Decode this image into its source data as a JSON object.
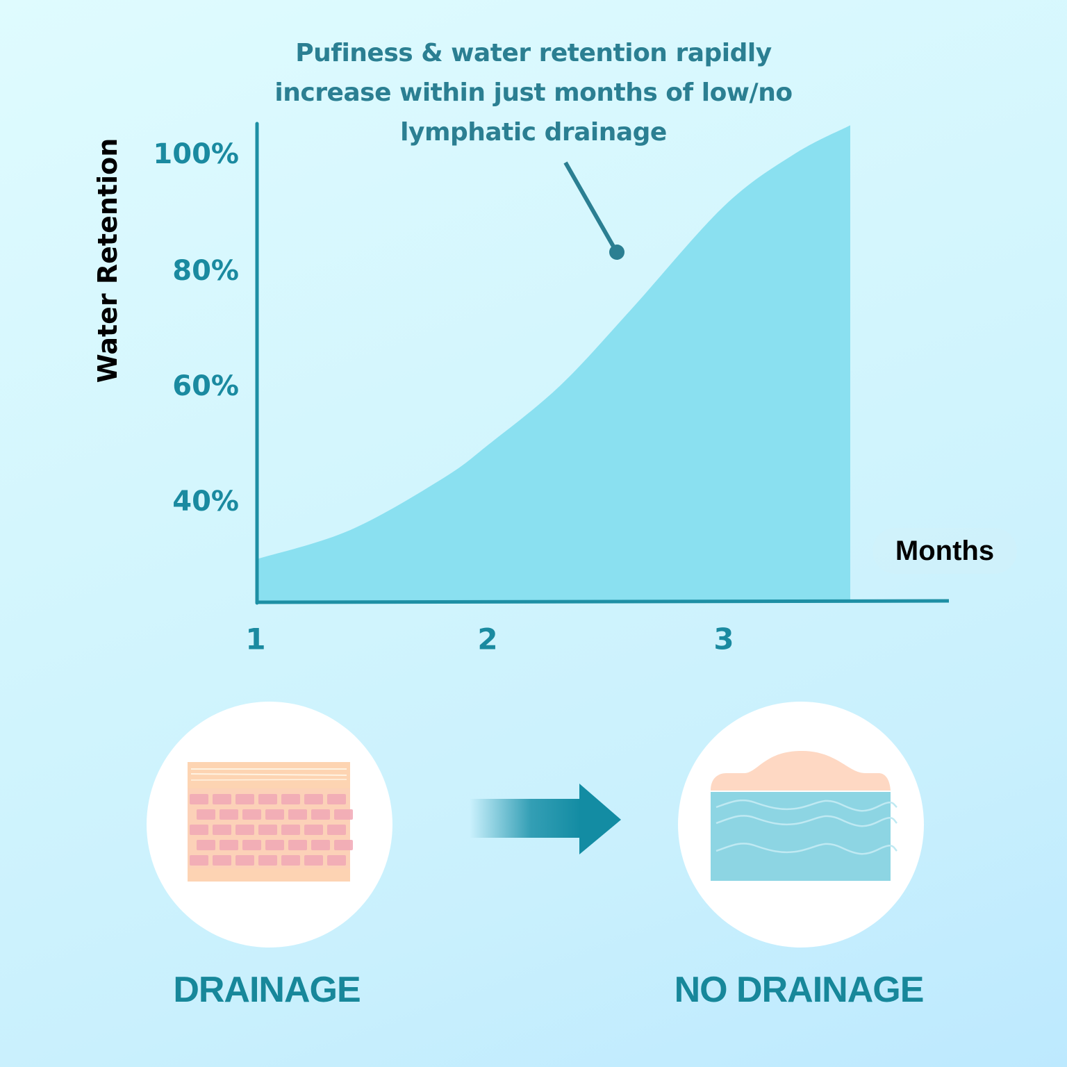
{
  "chart_data": {
    "type": "area",
    "title": "",
    "annotation": "Pufiness & water retention rapidly increase within just months of low/no lymphatic drainage",
    "xlabel": "Months",
    "ylabel": "Water Retention",
    "x_ticks": [
      "1",
      "2",
      "3"
    ],
    "x_tick_values": [
      1,
      2,
      3
    ],
    "y_ticks": [
      "40%",
      "60%",
      "80%",
      "100%"
    ],
    "y_tick_values": [
      40,
      60,
      80,
      100
    ],
    "xlim": [
      1,
      4.0
    ],
    "ylim": [
      22.7,
      105
    ],
    "grid": false,
    "series": [
      {
        "name": "Water Retention",
        "x": [
          1.0,
          1.4,
          1.8,
          2.0,
          2.3,
          2.6,
          3.0,
          3.3,
          3.54
        ],
        "y": [
          30,
          35,
          44,
          50,
          60,
          73,
          91,
          100,
          105
        ]
      }
    ],
    "colors": {
      "fill": "#8ae0f0",
      "axis": "#1d8fa4",
      "tick_text": "#1a8aa0",
      "annotation_text": "#2b7f92",
      "pointer": "#2b7f92"
    }
  },
  "illustrations": {
    "left_caption": "DRAINAGE",
    "right_caption": "NO DRAINAGE",
    "left_icon": "healthy-tissue-icon",
    "right_icon": "swollen-tissue-icon",
    "arrow_icon": "arrow-right-icon"
  }
}
